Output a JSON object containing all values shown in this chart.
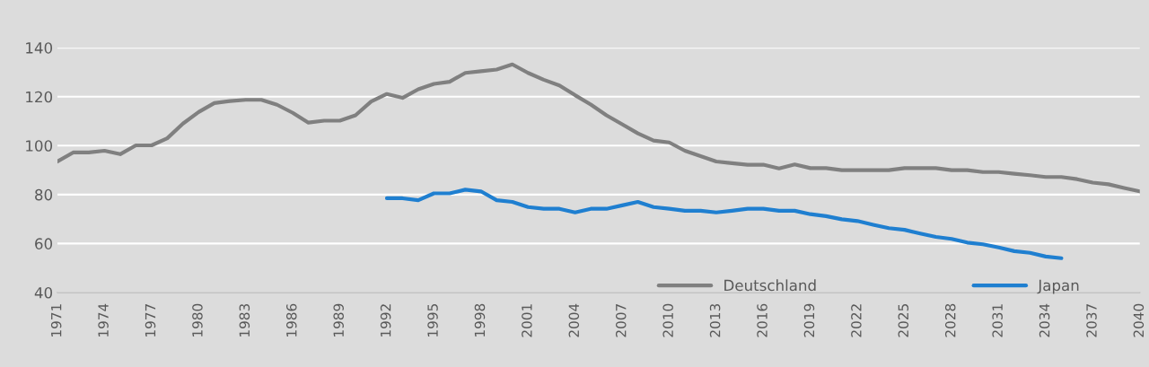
{
  "chart_data": {
    "type": "line",
    "x": [
      1971,
      1972,
      1973,
      1974,
      1975,
      1976,
      1977,
      1978,
      1979,
      1980,
      1981,
      1982,
      1983,
      1984,
      1985,
      1986,
      1987,
      1988,
      1989,
      1990,
      1991,
      1992,
      1993,
      1994,
      1995,
      1996,
      1997,
      1998,
      1999,
      2000,
      2001,
      2002,
      2003,
      2004,
      2005,
      2006,
      2007,
      2008,
      2009,
      2010,
      2011,
      2012,
      2013,
      2014,
      2015,
      2016,
      2017,
      2018,
      2019,
      2020,
      2021,
      2022,
      2023,
      2024,
      2025,
      2026,
      2027,
      2028,
      2029,
      2030,
      2031,
      2032,
      2033,
      2034,
      2035,
      2036,
      2037,
      2038,
      2039,
      2040
    ],
    "series": [
      {
        "name": "Deutschland",
        "color": "#808080",
        "values": [
          93.5,
          97.2,
          97.2,
          97.9,
          96.5,
          100.1,
          100.1,
          103,
          109,
          113.7,
          117.4,
          118.2,
          118.7,
          118.7,
          116.7,
          113.4,
          109.4,
          110.2,
          110.2,
          112.4,
          118,
          121.1,
          119.5,
          123,
          125.2,
          126.1,
          129.7,
          130.4,
          131.1,
          133.2,
          129.7,
          126.9,
          124.6,
          120.6,
          116.8,
          112.4,
          108.7,
          105,
          102.1,
          101.3,
          97.9,
          95.7,
          93.5,
          92.8,
          92.2,
          92.2,
          90.7,
          92.3,
          90.8,
          90.8,
          90,
          90,
          90,
          90,
          90.8,
          90.8,
          90.8,
          90,
          90,
          89.2,
          89.2,
          88.5,
          87.9,
          87.2,
          87.2,
          86.3,
          84.9,
          84.2,
          82.7,
          81.3
        ]
      },
      {
        "name": "Japan",
        "color": "#1f7fd0",
        "values": [
          null,
          null,
          null,
          null,
          null,
          null,
          null,
          null,
          null,
          null,
          null,
          null,
          null,
          null,
          null,
          null,
          null,
          null,
          null,
          null,
          null,
          78.5,
          78.5,
          77.7,
          80.5,
          80.5,
          82,
          81.3,
          77.7,
          77,
          74.9,
          74.2,
          74.2,
          72.7,
          74.2,
          74.2,
          75.6,
          77,
          74.9,
          74.2,
          73.4,
          73.4,
          72.7,
          73.4,
          74.2,
          74.2,
          73.4,
          73.4,
          72,
          71.2,
          69.9,
          69.2,
          67.7,
          66.3,
          65.6,
          64.1,
          62.7,
          61.9,
          60.4,
          59.7,
          58.4,
          56.9,
          56.2,
          54.7,
          54,
          null,
          null,
          null,
          null,
          null
        ]
      }
    ],
    "xlim": [
      1971,
      2040
    ],
    "xticks": [
      1971,
      1974,
      1977,
      1980,
      1983,
      1986,
      1989,
      1992,
      1995,
      1998,
      2001,
      2004,
      2007,
      2010,
      2013,
      2016,
      2019,
      2022,
      2025,
      2028,
      2031,
      2034,
      2037,
      2040
    ],
    "ylim": [
      40,
      140
    ],
    "yticks": [
      40,
      60,
      80,
      100,
      120,
      140
    ],
    "grid": "y",
    "legend": "bottom right",
    "line_style": "solid",
    "marker": "none"
  }
}
